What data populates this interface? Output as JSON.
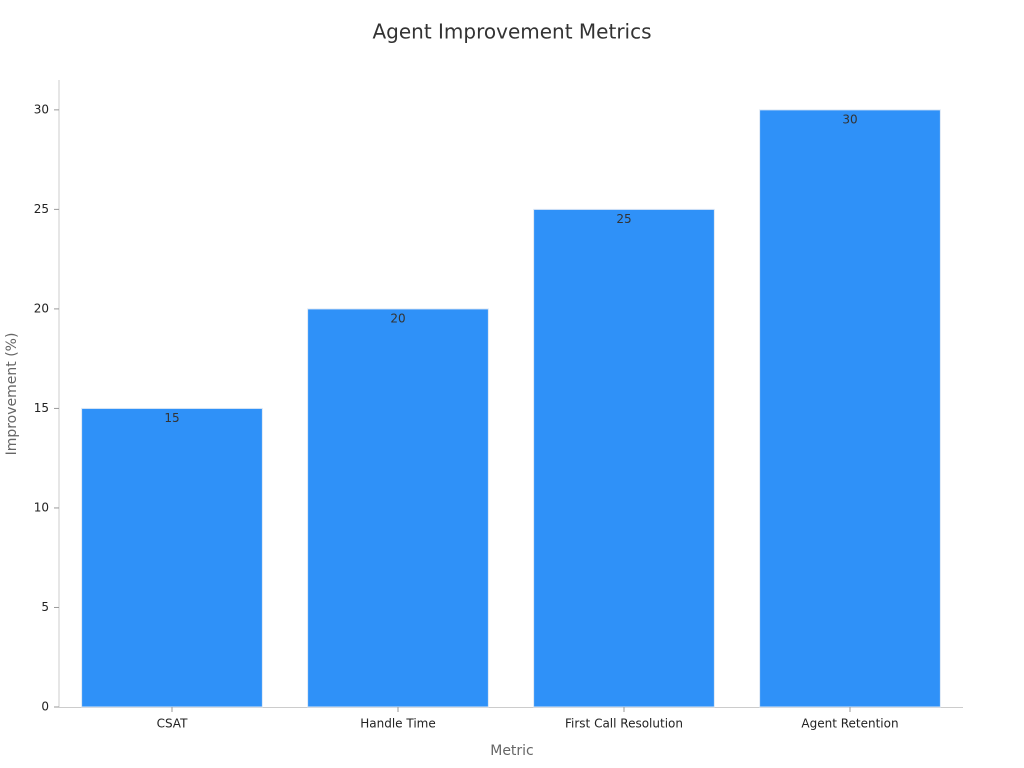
{
  "chart_data": {
    "type": "bar",
    "title": "Agent Improvement Metrics",
    "x_label": "Metric",
    "y_label": "Improvement (%)",
    "categories": [
      "CSAT",
      "Handle Time",
      "First Call Resolution",
      "Agent Retention"
    ],
    "values": [
      15,
      20,
      25,
      30
    ],
    "color": "#2f91f8",
    "ylim": [
      0,
      31.5
    ],
    "yticks": [
      0,
      5,
      10,
      15,
      20,
      25,
      30
    ],
    "grid": false
  }
}
